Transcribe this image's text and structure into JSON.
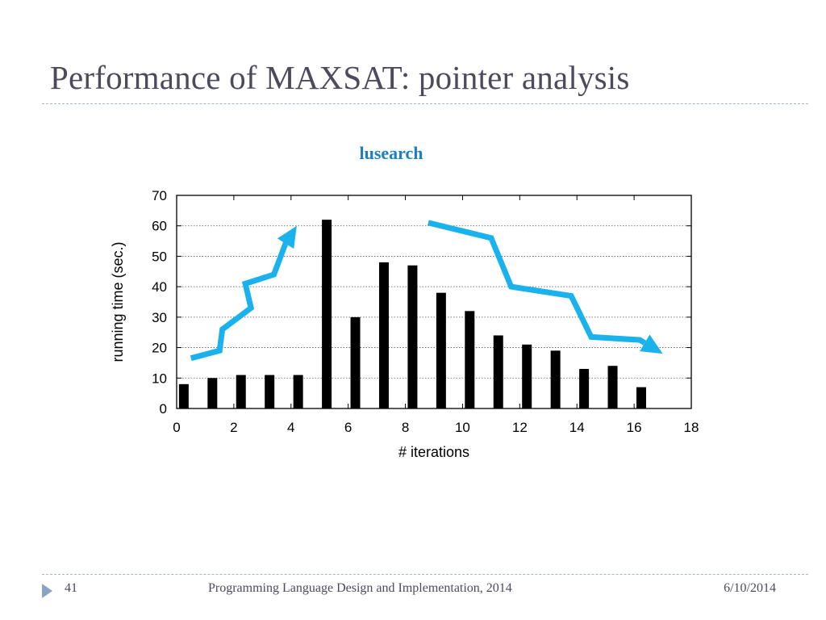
{
  "slide": {
    "title": "Performance of MAXSAT: pointer analysis",
    "footer": {
      "page_number": "41",
      "center_text": "Programming Language Design and Implementation, 2014",
      "date": "6/10/2014"
    }
  },
  "chart_data": {
    "type": "bar",
    "title": "lusearch",
    "xlabel": "# iterations",
    "ylabel": "running time (sec.)",
    "x": [
      0,
      1,
      2,
      3,
      4,
      5,
      6,
      7,
      8,
      9,
      10,
      11,
      12,
      13,
      14,
      15,
      16
    ],
    "values": [
      8,
      10,
      11,
      11,
      11,
      62,
      30,
      48,
      47,
      38,
      32,
      24,
      21,
      19,
      13,
      14,
      7
    ],
    "xlim": [
      0,
      18
    ],
    "ylim": [
      0,
      70
    ],
    "xticks": [
      0,
      2,
      4,
      6,
      8,
      10,
      12,
      14,
      16,
      18
    ],
    "yticks": [
      0,
      10,
      20,
      30,
      40,
      50,
      60,
      70
    ],
    "grid": "horizontal dotted",
    "bar_color": "#000000",
    "trend_color": "#19b2ec",
    "trends": [
      {
        "direction": "rising",
        "points": [
          [
            0.5,
            16.5
          ],
          [
            1.5,
            19
          ],
          [
            1.6,
            26
          ],
          [
            2.6,
            33
          ],
          [
            2.4,
            41
          ],
          [
            3.4,
            44
          ],
          [
            3.8,
            54
          ],
          [
            4.2,
            60
          ]
        ]
      },
      {
        "direction": "falling",
        "points": [
          [
            8.8,
            61
          ],
          [
            11,
            56
          ],
          [
            11.7,
            40
          ],
          [
            13.8,
            37
          ],
          [
            14.5,
            23.5
          ],
          [
            16.2,
            22.5
          ],
          [
            17,
            18
          ]
        ]
      }
    ]
  }
}
